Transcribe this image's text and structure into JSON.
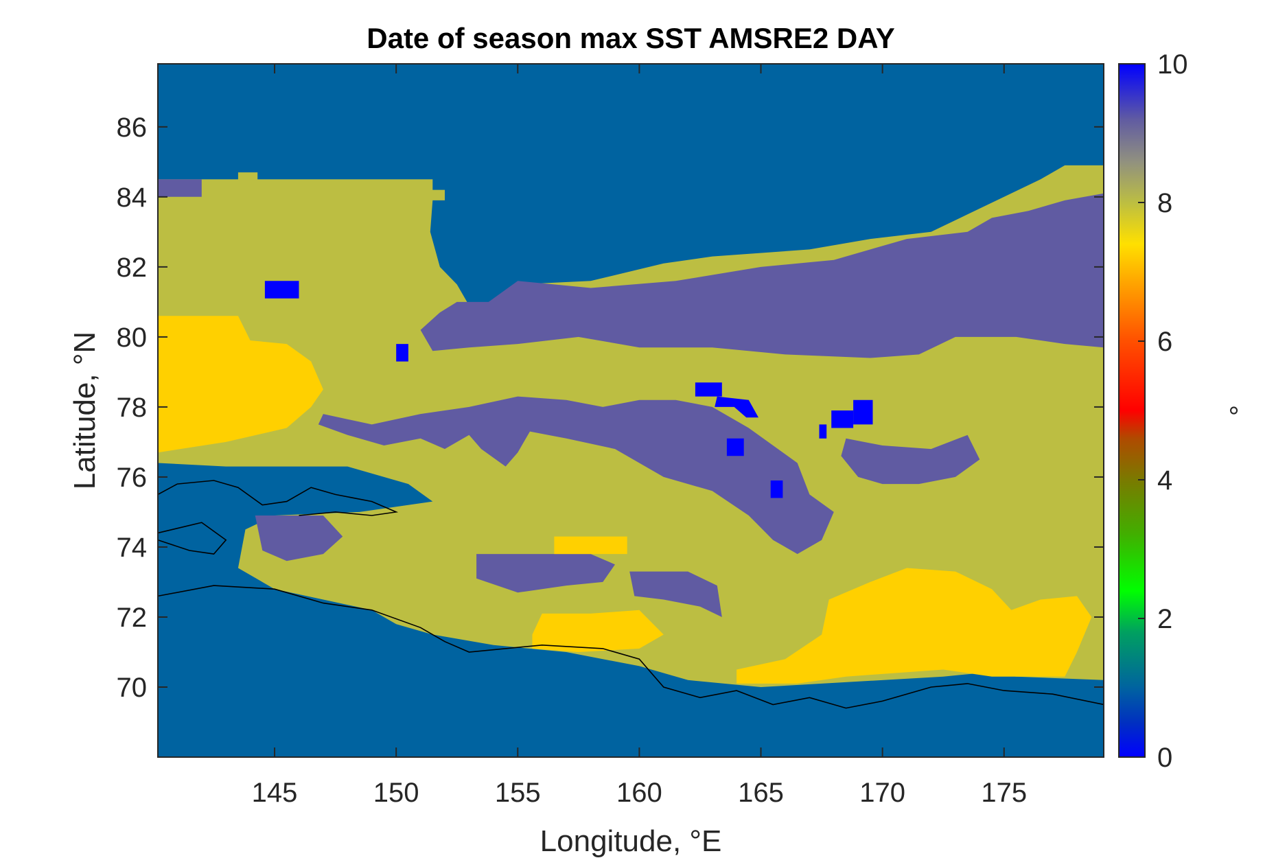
{
  "chart_data": {
    "type": "heatmap",
    "title": "Date of season max SST AMSRE2 DAY",
    "xlabel": "Longitude, °E",
    "ylabel": "Latitude, °N",
    "colorbar_label": "°",
    "xlim": [
      140.2,
      179.1
    ],
    "ylim": [
      68.0,
      87.8
    ],
    "xticks": [
      145,
      150,
      155,
      160,
      165,
      170,
      175
    ],
    "yticks": [
      70,
      72,
      74,
      76,
      78,
      80,
      82,
      84,
      86
    ],
    "color_limits": [
      0,
      10
    ],
    "colorbar_ticks": [
      0,
      2,
      4,
      6,
      8,
      10
    ],
    "colors": {
      "value_0": "#0000ff",
      "value_1": "#0063a0",
      "value_7": "#ffd000",
      "value_8": "#bcbe42",
      "value_9": "#605ba2"
    },
    "value_regions": [
      {
        "value": 1,
        "description": "background water / north",
        "polygon": [
          [
            140.2,
            87.8
          ],
          [
            179.1,
            87.8
          ],
          [
            179.1,
            68.0
          ],
          [
            140.2,
            68.0
          ]
        ]
      },
      {
        "value": 8,
        "polygon": [
          [
            140.2,
            84.5
          ],
          [
            143.5,
            84.5
          ],
          [
            143.5,
            84.7
          ],
          [
            144.3,
            84.7
          ],
          [
            144.3,
            84.5
          ],
          [
            151.5,
            84.5
          ],
          [
            151.5,
            84.2
          ],
          [
            152.0,
            84.2
          ],
          [
            152.0,
            83.9
          ],
          [
            151.5,
            83.9
          ],
          [
            151.4,
            83.0
          ],
          [
            151.8,
            82.0
          ],
          [
            152.5,
            81.5
          ],
          [
            153.0,
            80.9
          ],
          [
            154.0,
            81.0
          ],
          [
            155.0,
            81.5
          ],
          [
            158.0,
            81.6
          ],
          [
            161.0,
            82.1
          ],
          [
            163.0,
            82.3
          ],
          [
            167.0,
            82.5
          ],
          [
            169.5,
            82.8
          ],
          [
            172.0,
            83.0
          ],
          [
            173.5,
            83.5
          ],
          [
            175.0,
            84.0
          ],
          [
            176.5,
            84.5
          ],
          [
            177.5,
            84.9
          ],
          [
            179.1,
            84.9
          ],
          [
            179.1,
            70.2
          ],
          [
            175.5,
            70.3
          ],
          [
            174.0,
            70.4
          ],
          [
            172.5,
            70.3
          ],
          [
            165.0,
            70.0
          ],
          [
            162.0,
            70.2
          ],
          [
            160.0,
            70.6
          ],
          [
            157.0,
            71.0
          ],
          [
            154.0,
            71.2
          ],
          [
            151.5,
            71.5
          ],
          [
            150.0,
            71.8
          ],
          [
            149.0,
            72.2
          ],
          [
            147.0,
            72.5
          ],
          [
            145.0,
            72.8
          ],
          [
            143.5,
            73.4
          ],
          [
            143.8,
            74.5
          ],
          [
            145.0,
            74.9
          ],
          [
            148.5,
            75.0
          ],
          [
            151.5,
            75.3
          ],
          [
            150.5,
            75.8
          ],
          [
            148.0,
            76.3
          ],
          [
            143.0,
            76.3
          ],
          [
            140.2,
            76.4
          ]
        ]
      },
      {
        "value": 9,
        "polygon": [
          [
            140.2,
            84.5
          ],
          [
            142.0,
            84.5
          ],
          [
            142.0,
            84.0
          ],
          [
            140.2,
            84.0
          ]
        ]
      },
      {
        "value": 9,
        "polygon": [
          [
            151.0,
            80.2
          ],
          [
            151.8,
            80.7
          ],
          [
            152.5,
            81.0
          ],
          [
            153.8,
            81.0
          ],
          [
            155.0,
            81.6
          ],
          [
            158.0,
            81.4
          ],
          [
            161.5,
            81.6
          ],
          [
            165.0,
            82.0
          ],
          [
            168.0,
            82.2
          ],
          [
            171.0,
            82.8
          ],
          [
            173.5,
            83.0
          ],
          [
            174.5,
            83.4
          ],
          [
            176.0,
            83.6
          ],
          [
            177.5,
            83.9
          ],
          [
            179.1,
            84.1
          ],
          [
            179.1,
            79.7
          ],
          [
            177.5,
            79.8
          ],
          [
            175.5,
            80.0
          ],
          [
            173.0,
            80.0
          ],
          [
            171.5,
            79.5
          ],
          [
            169.5,
            79.4
          ],
          [
            166.0,
            79.5
          ],
          [
            163.0,
            79.7
          ],
          [
            160.0,
            79.7
          ],
          [
            157.5,
            80.0
          ],
          [
            155.0,
            79.8
          ],
          [
            153.0,
            79.7
          ],
          [
            151.5,
            79.6
          ]
        ]
      },
      {
        "value": 9,
        "polygon": [
          [
            146.8,
            77.5
          ],
          [
            148.0,
            77.2
          ],
          [
            149.5,
            76.9
          ],
          [
            151.0,
            77.1
          ],
          [
            152.0,
            76.8
          ],
          [
            153.0,
            77.2
          ],
          [
            153.5,
            76.8
          ],
          [
            154.5,
            76.3
          ],
          [
            155.0,
            76.7
          ],
          [
            155.5,
            77.3
          ],
          [
            157.0,
            77.1
          ],
          [
            159.0,
            76.8
          ],
          [
            161.0,
            76.0
          ],
          [
            163.0,
            75.6
          ],
          [
            164.5,
            74.9
          ],
          [
            165.5,
            74.2
          ],
          [
            166.5,
            73.8
          ],
          [
            167.5,
            74.2
          ],
          [
            168.0,
            75.0
          ],
          [
            167.0,
            75.5
          ],
          [
            166.5,
            76.4
          ],
          [
            164.5,
            77.4
          ],
          [
            163.0,
            78.0
          ],
          [
            161.5,
            78.2
          ],
          [
            160.0,
            78.2
          ],
          [
            158.5,
            78.0
          ],
          [
            157.0,
            78.2
          ],
          [
            155.0,
            78.3
          ],
          [
            153.0,
            78.0
          ],
          [
            151.0,
            77.8
          ],
          [
            149.0,
            77.5
          ],
          [
            147.0,
            77.8
          ]
        ]
      },
      {
        "value": 9,
        "polygon": [
          [
            168.5,
            77.1
          ],
          [
            170.0,
            76.9
          ],
          [
            172.0,
            76.8
          ],
          [
            173.5,
            77.2
          ],
          [
            174.0,
            76.5
          ],
          [
            173.0,
            76.0
          ],
          [
            171.5,
            75.8
          ],
          [
            170.0,
            75.8
          ],
          [
            169.0,
            76.0
          ],
          [
            168.3,
            76.6
          ]
        ]
      },
      {
        "value": 9,
        "polygon": [
          [
            144.2,
            74.9
          ],
          [
            147.0,
            74.9
          ],
          [
            147.8,
            74.3
          ],
          [
            147.0,
            73.8
          ],
          [
            145.5,
            73.6
          ],
          [
            144.5,
            73.9
          ]
        ]
      },
      {
        "value": 9,
        "polygon": [
          [
            153.3,
            73.8
          ],
          [
            155.2,
            73.8
          ],
          [
            158.0,
            73.8
          ],
          [
            159.0,
            73.5
          ],
          [
            158.5,
            73.0
          ],
          [
            157.0,
            72.9
          ],
          [
            155.0,
            72.7
          ],
          [
            153.3,
            73.1
          ]
        ]
      },
      {
        "value": 9,
        "polygon": [
          [
            159.6,
            73.3
          ],
          [
            162.0,
            73.3
          ],
          [
            163.2,
            72.9
          ],
          [
            163.4,
            72.0
          ],
          [
            162.5,
            72.3
          ],
          [
            161.0,
            72.5
          ],
          [
            159.8,
            72.6
          ]
        ]
      },
      {
        "value": 7,
        "polygon": [
          [
            140.2,
            80.6
          ],
          [
            143.5,
            80.6
          ],
          [
            144.0,
            79.9
          ],
          [
            145.5,
            79.8
          ],
          [
            146.5,
            79.3
          ],
          [
            147.0,
            78.5
          ],
          [
            146.5,
            78.0
          ],
          [
            145.5,
            77.4
          ],
          [
            143.0,
            77.0
          ],
          [
            140.2,
            76.7
          ]
        ]
      },
      {
        "value": 7,
        "polygon": [
          [
            156.5,
            74.3
          ],
          [
            159.5,
            74.3
          ],
          [
            159.5,
            73.8
          ],
          [
            156.5,
            73.8
          ]
        ]
      },
      {
        "value": 7,
        "polygon": [
          [
            164.0,
            70.5
          ],
          [
            166.0,
            70.8
          ],
          [
            167.5,
            71.5
          ],
          [
            167.8,
            72.5
          ],
          [
            169.5,
            73.0
          ],
          [
            171.0,
            73.4
          ],
          [
            173.0,
            73.3
          ],
          [
            174.5,
            72.8
          ],
          [
            175.3,
            72.2
          ],
          [
            176.5,
            72.5
          ],
          [
            178.0,
            72.6
          ],
          [
            178.6,
            72.0
          ],
          [
            178.0,
            71.0
          ],
          [
            177.5,
            70.3
          ],
          [
            174.5,
            70.3
          ],
          [
            172.5,
            70.5
          ],
          [
            168.5,
            70.3
          ],
          [
            166.5,
            70.1
          ],
          [
            164.0,
            70.1
          ]
        ]
      },
      {
        "value": 7,
        "polygon": [
          [
            155.6,
            71.5
          ],
          [
            156.0,
            72.1
          ],
          [
            158.0,
            72.1
          ],
          [
            160.0,
            72.2
          ],
          [
            161.0,
            71.5
          ],
          [
            160.0,
            71.1
          ],
          [
            157.5,
            71.0
          ],
          [
            155.6,
            71.1
          ]
        ]
      },
      {
        "value": 0,
        "polygon": [
          [
            144.6,
            81.6
          ],
          [
            146.0,
            81.6
          ],
          [
            146.0,
            81.1
          ],
          [
            144.6,
            81.1
          ]
        ]
      },
      {
        "value": 0,
        "polygon": [
          [
            150.0,
            79.8
          ],
          [
            150.5,
            79.8
          ],
          [
            150.5,
            79.3
          ],
          [
            150.0,
            79.3
          ]
        ]
      },
      {
        "value": 0,
        "polygon": [
          [
            162.3,
            78.7
          ],
          [
            163.4,
            78.7
          ],
          [
            163.4,
            78.3
          ],
          [
            162.3,
            78.3
          ]
        ]
      },
      {
        "value": 0,
        "polygon": [
          [
            163.2,
            78.3
          ],
          [
            164.5,
            78.2
          ],
          [
            164.9,
            77.7
          ],
          [
            164.4,
            77.7
          ],
          [
            163.9,
            78.0
          ],
          [
            163.1,
            78.0
          ]
        ]
      },
      {
        "value": 0,
        "polygon": [
          [
            163.6,
            77.1
          ],
          [
            164.3,
            77.1
          ],
          [
            164.3,
            76.6
          ],
          [
            163.6,
            76.6
          ]
        ]
      },
      {
        "value": 0,
        "polygon": [
          [
            165.4,
            75.9
          ],
          [
            165.9,
            75.9
          ],
          [
            165.9,
            75.4
          ],
          [
            165.4,
            75.4
          ]
        ]
      },
      {
        "value": 0,
        "polygon": [
          [
            167.9,
            77.9
          ],
          [
            168.8,
            77.9
          ],
          [
            168.8,
            77.4
          ],
          [
            167.9,
            77.4
          ]
        ]
      },
      {
        "value": 0,
        "polygon": [
          [
            168.8,
            78.2
          ],
          [
            169.6,
            78.2
          ],
          [
            169.6,
            77.5
          ],
          [
            168.8,
            77.5
          ]
        ]
      },
      {
        "value": 0,
        "polygon": [
          [
            167.4,
            77.5
          ],
          [
            167.7,
            77.5
          ],
          [
            167.7,
            77.1
          ],
          [
            167.4,
            77.1
          ]
        ]
      }
    ],
    "coastlines": [
      [
        [
          179.1,
          69.5
        ],
        [
          177.0,
          69.8
        ],
        [
          175.0,
          69.9
        ],
        [
          173.5,
          70.1
        ],
        [
          172.0,
          70.0
        ],
        [
          170.0,
          69.6
        ],
        [
          168.5,
          69.4
        ],
        [
          167.0,
          69.7
        ],
        [
          165.5,
          69.5
        ],
        [
          164.0,
          69.9
        ],
        [
          162.5,
          69.7
        ],
        [
          161.0,
          70.0
        ],
        [
          160.0,
          70.8
        ],
        [
          158.5,
          71.1
        ],
        [
          156.0,
          71.2
        ],
        [
          153.0,
          71.0
        ],
        [
          152.0,
          71.3
        ],
        [
          151.0,
          71.7
        ],
        [
          149.0,
          72.2
        ],
        [
          147.0,
          72.4
        ],
        [
          145.0,
          72.8
        ],
        [
          142.5,
          72.9
        ],
        [
          140.2,
          72.6
        ]
      ],
      [
        [
          140.2,
          75.5
        ],
        [
          141.0,
          75.8
        ],
        [
          142.5,
          75.9
        ],
        [
          143.5,
          75.7
        ],
        [
          144.5,
          75.2
        ],
        [
          145.5,
          75.3
        ],
        [
          146.5,
          75.7
        ],
        [
          147.5,
          75.5
        ],
        [
          149.0,
          75.3
        ],
        [
          150.0,
          75.0
        ],
        [
          149.0,
          74.9
        ],
        [
          147.5,
          75.0
        ],
        [
          146.0,
          74.9
        ]
      ],
      [
        [
          140.2,
          74.2
        ],
        [
          141.5,
          73.9
        ],
        [
          142.5,
          73.8
        ],
        [
          143.0,
          74.2
        ],
        [
          142.0,
          74.7
        ],
        [
          140.2,
          74.4
        ]
      ]
    ]
  }
}
